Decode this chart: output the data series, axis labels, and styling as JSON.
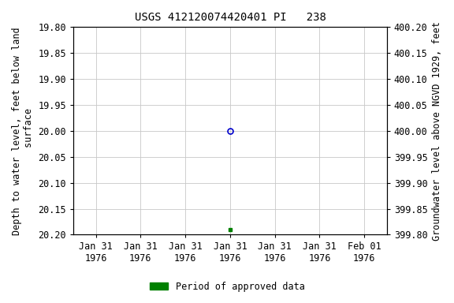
{
  "title": "USGS 412120074420401 PI   238",
  "ylabel_left": "Depth to water level, feet below land\n surface",
  "ylabel_right": "Groundwater level above NGVD 1929, feet",
  "ylim_left": [
    20.2,
    19.8
  ],
  "ylim_right": [
    399.8,
    400.2
  ],
  "yticks_left": [
    19.8,
    19.85,
    19.9,
    19.95,
    20.0,
    20.05,
    20.1,
    20.15,
    20.2
  ],
  "yticks_right": [
    400.2,
    400.15,
    400.1,
    400.05,
    400.0,
    399.95,
    399.9,
    399.85,
    399.8
  ],
  "x_center_date": "1976-01-31",
  "x_num_ticks": 7,
  "x_tick_spacing_days": 0.1,
  "xtick_labels": [
    "Jan 31\n1976",
    "Jan 31\n1976",
    "Jan 31\n1976",
    "Jan 31\n1976",
    "Jan 31\n1976",
    "Jan 31\n1976",
    "Feb 01\n1976"
  ],
  "data_point_open": {
    "x_tick_index": 3,
    "value": 20.0,
    "color": "#0000cc",
    "marker": "o",
    "markersize": 5
  },
  "data_point_filled": {
    "x_tick_index": 3,
    "value": 20.19,
    "color": "#008000",
    "marker": "s",
    "markersize": 3
  },
  "legend_label": "Period of approved data",
  "legend_color": "#008000",
  "background_color": "#ffffff",
  "grid_color": "#c8c8c8",
  "tick_label_fontsize": 8.5,
  "title_fontsize": 10,
  "axis_label_fontsize": 8.5
}
